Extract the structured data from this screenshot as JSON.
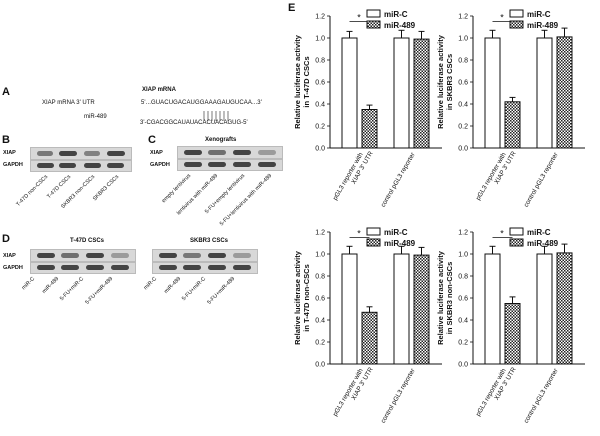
{
  "panels": {
    "A": "A",
    "B": "B",
    "C": "C",
    "D": "D",
    "E": "E"
  },
  "panelA": {
    "title": "XIAP mRNA",
    "utr_label": "XIAP mRNA 3' UTR",
    "seq_top": "5'...GUACUGACAUGGAAAGAUGUCAA...3'",
    "mir_label": "miR-489",
    "seq_bottom": "3'-CGACGGCAUAUACACUACAGUG-5'"
  },
  "panelB": {
    "rows": [
      "XIAP",
      "GAPDH"
    ],
    "lanes": [
      "T-47D non-CSCs",
      "T-47D CSCs",
      "SKBR3 non-CSCs",
      "SKBR3 CSCs"
    ]
  },
  "panelC": {
    "title": "Xenografts",
    "rows": [
      "XIAP",
      "GAPDH"
    ],
    "lanes": [
      "empty lentivirus",
      "lentivirus with miR-489",
      "5-FU+empty lentivirus",
      "5-FU+lentivirus with miR-489"
    ]
  },
  "panelD": {
    "left_title": "T-47D CSCs",
    "right_title": "SKBR3 CSCs",
    "rows": [
      "XIAP",
      "GAPDH"
    ],
    "lanes": [
      "miR-C",
      "miR-489",
      "5-FU+miR-C",
      "5-FU+miR-489"
    ]
  },
  "legend": {
    "a": "miR-C",
    "b": "miR-489"
  },
  "star": "*",
  "chart_data": [
    {
      "type": "bar",
      "ylabel": "Relative luciferase activity in T-47D CSCs",
      "categories": [
        "pGL3 reporter with XIAP 3' UTR",
        "control pGL3 reporter"
      ],
      "series": [
        {
          "name": "miR-C",
          "values": [
            1.0,
            1.0
          ]
        },
        {
          "name": "miR-489",
          "values": [
            0.35,
            0.99
          ]
        }
      ],
      "errors": [
        {
          "name": "miR-C",
          "values": [
            0.06,
            0.07
          ]
        },
        {
          "name": "miR-489",
          "values": [
            0.04,
            0.07
          ]
        }
      ],
      "ylim": [
        0,
        1.2
      ],
      "yticks": [
        "0.0",
        "0.2",
        "0.4",
        "0.6",
        "0.8",
        "1.0",
        "1.2"
      ]
    },
    {
      "type": "bar",
      "ylabel": "Relative luciferase activity in SKBR3 CSCs",
      "categories": [
        "pGL3 reporter with XIAP 3' UTR",
        "control pGL3 reporter"
      ],
      "series": [
        {
          "name": "miR-C",
          "values": [
            1.0,
            1.0
          ]
        },
        {
          "name": "miR-489",
          "values": [
            0.42,
            1.01
          ]
        }
      ],
      "errors": [
        {
          "name": "miR-C",
          "values": [
            0.07,
            0.07
          ]
        },
        {
          "name": "miR-489",
          "values": [
            0.04,
            0.08
          ]
        }
      ],
      "ylim": [
        0,
        1.2
      ],
      "yticks": [
        "0.0",
        "0.2",
        "0.4",
        "0.6",
        "0.8",
        "1.0",
        "1.2"
      ]
    },
    {
      "type": "bar",
      "ylabel": "Relative luciferase activity in T-47D non-CSCs",
      "categories": [
        "pGL3 reporter with XIAP 3' UTR",
        "control pGL3 reporter"
      ],
      "series": [
        {
          "name": "miR-C",
          "values": [
            1.0,
            1.0
          ]
        },
        {
          "name": "miR-489",
          "values": [
            0.47,
            0.99
          ]
        }
      ],
      "errors": [
        {
          "name": "miR-C",
          "values": [
            0.07,
            0.07
          ]
        },
        {
          "name": "miR-489",
          "values": [
            0.05,
            0.07
          ]
        }
      ],
      "ylim": [
        0,
        1.2
      ],
      "yticks": [
        "0.0",
        "0.2",
        "0.4",
        "0.6",
        "0.8",
        "1.0",
        "1.2"
      ]
    },
    {
      "type": "bar",
      "ylabel": "Relative luciferase activity in SKBR3 non-CSCs",
      "categories": [
        "pGL3 reporter with XIAP 3' UTR",
        "control pGL3 reporter"
      ],
      "series": [
        {
          "name": "miR-C",
          "values": [
            1.0,
            1.0
          ]
        },
        {
          "name": "miR-489",
          "values": [
            0.55,
            1.01
          ]
        }
      ],
      "errors": [
        {
          "name": "miR-C",
          "values": [
            0.07,
            0.07
          ]
        },
        {
          "name": "miR-489",
          "values": [
            0.06,
            0.08
          ]
        }
      ],
      "ylim": [
        0,
        1.2
      ],
      "yticks": [
        "0.0",
        "0.2",
        "0.4",
        "0.6",
        "0.8",
        "1.0",
        "1.2"
      ]
    }
  ]
}
